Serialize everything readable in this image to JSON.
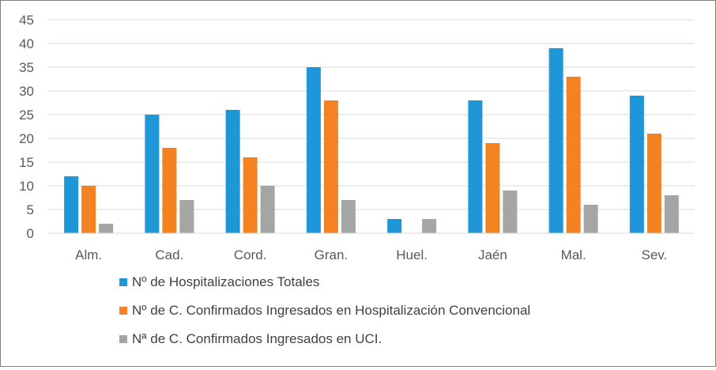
{
  "chart_data": {
    "type": "bar",
    "categories": [
      "Alm.",
      "Cad.",
      "Cord.",
      "Gran.",
      "Huel.",
      "Jaén",
      "Mal.",
      "Sev."
    ],
    "series": [
      {
        "name": "Nº de Hospitalizaciones Totales",
        "color": "#1f96d8",
        "values": [
          12,
          25,
          26,
          35,
          3,
          28,
          39,
          29
        ]
      },
      {
        "name": "Nº de C. Confirmados Ingresados en Hospitalización Convencional",
        "color": "#f58220",
        "values": [
          10,
          18,
          16,
          28,
          0,
          19,
          33,
          21
        ]
      },
      {
        "name": "Nª de C. Confirmados Ingresados en UCI.",
        "color": "#a5a5a5",
        "values": [
          2,
          7,
          10,
          7,
          3,
          9,
          6,
          8
        ]
      }
    ],
    "ylim": [
      0,
      45
    ],
    "yticks": [
      0,
      5,
      10,
      15,
      20,
      25,
      30,
      35,
      40,
      45
    ],
    "grid": true,
    "legend_position": "bottom"
  }
}
